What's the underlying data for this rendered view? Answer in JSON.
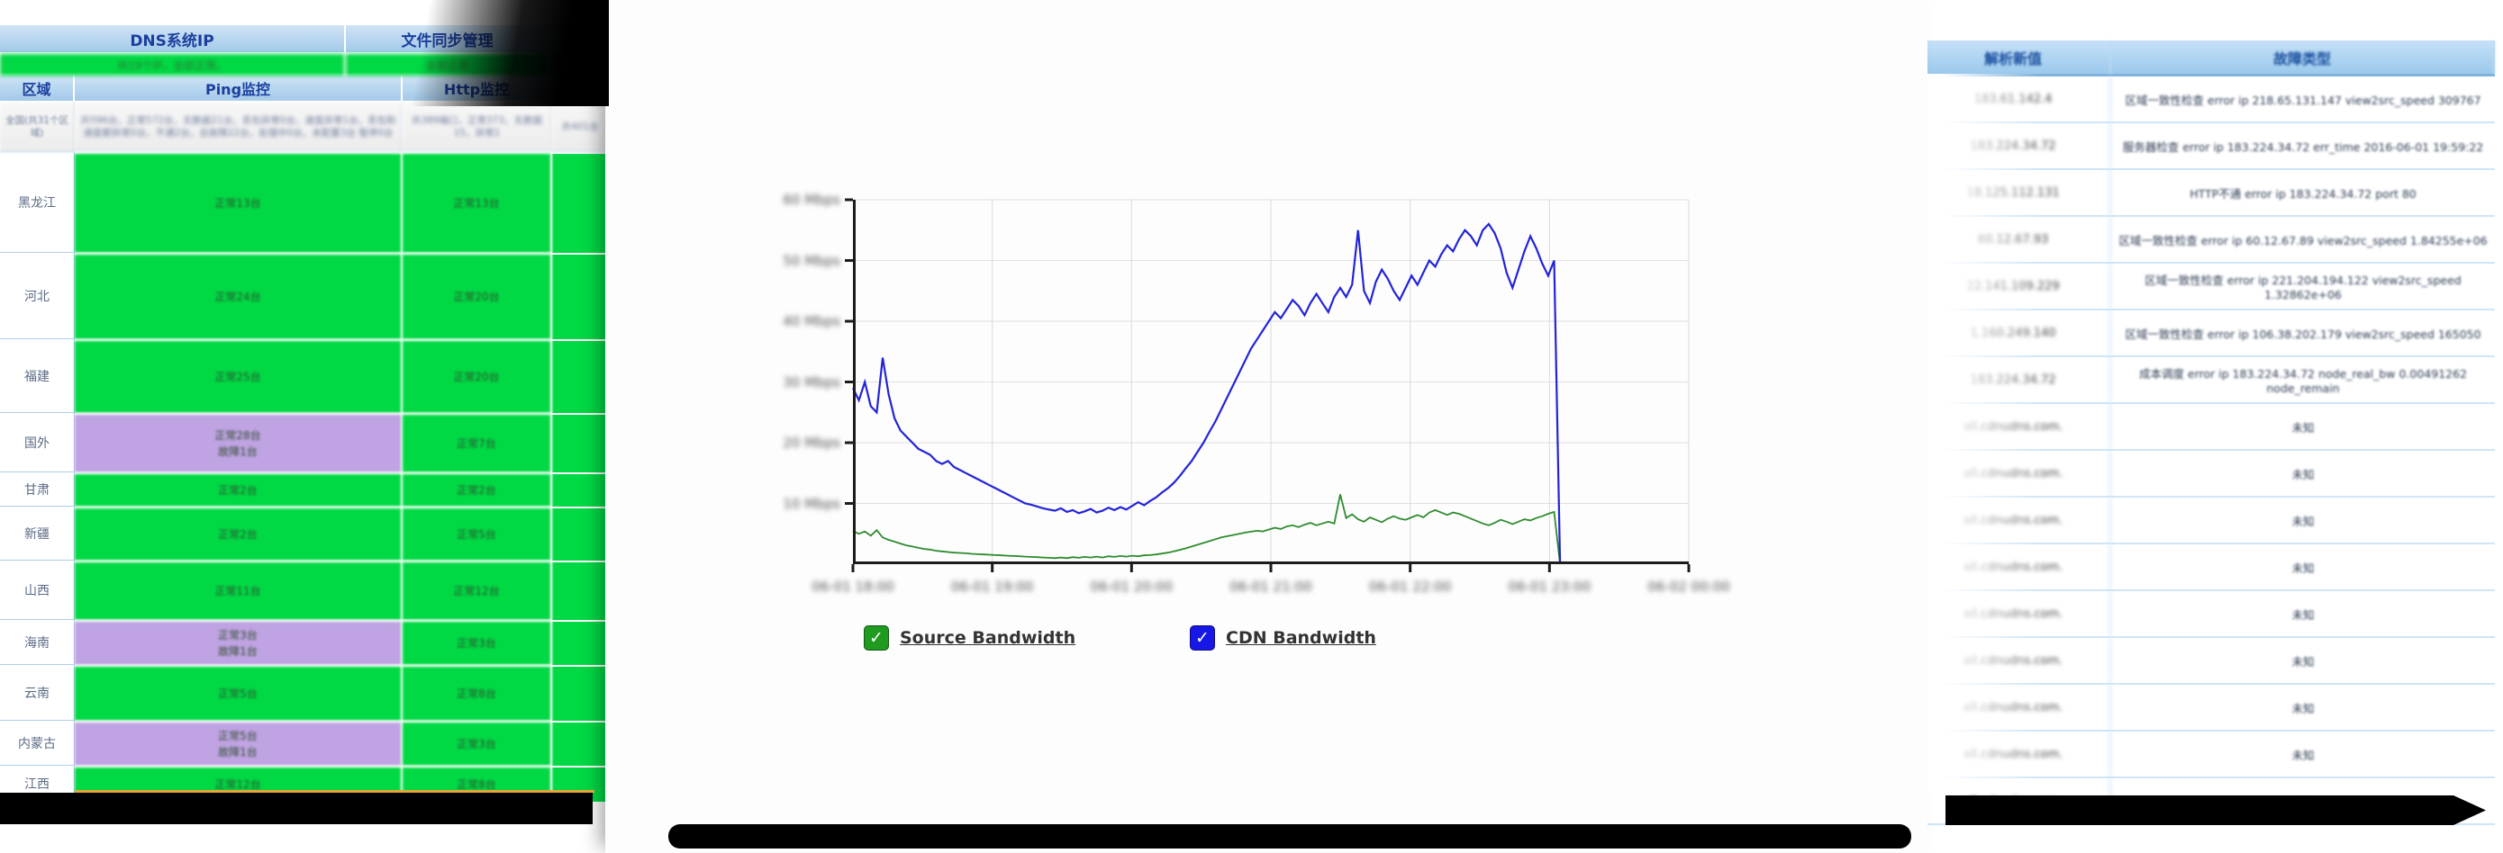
{
  "left_panel": {
    "top_header": {
      "dns_title": "DNS系统IP",
      "file_sync_title": "文件同步管理"
    },
    "summary_row": {
      "dns_summary": "共19个IP，全部正常。",
      "file_sync_summary": "全部正常"
    },
    "columns": {
      "region": "区域",
      "ping": "Ping监控",
      "http": "Http监控"
    },
    "national_row": {
      "region": "全国(共31个区域)",
      "ping_summary": "共596台，正常572台，无数据21台，丢包异常0台，速度异常1台，丢包和速度都异常0台，不通2台，总故障22台，处理中0台，未配置3台 暂停0台",
      "http_summary": "共389端口，正常373，无数据15，异常1",
      "extra_summary": "共401台"
    },
    "rows": [
      {
        "region": "黑龙江",
        "ping": "正常13台",
        "ping_fault": "",
        "http": "正常13台",
        "ping_status": "ok"
      },
      {
        "region": "河北",
        "ping": "正常24台",
        "ping_fault": "",
        "http": "正常20台",
        "ping_status": "ok"
      },
      {
        "region": "福建",
        "ping": "正常25台",
        "ping_fault": "",
        "http": "正常20台",
        "ping_status": "ok"
      },
      {
        "region": "国外",
        "ping": "正常28台",
        "ping_fault": "故障1台",
        "http": "正常7台",
        "ping_status": "fault"
      },
      {
        "region": "甘肃",
        "ping": "正常2台",
        "ping_fault": "",
        "http": "正常2台",
        "ping_status": "ok"
      },
      {
        "region": "新疆",
        "ping": "正常2台",
        "ping_fault": "",
        "http": "正常5台",
        "ping_status": "ok"
      },
      {
        "region": "山西",
        "ping": "正常11台",
        "ping_fault": "",
        "http": "正常12台",
        "ping_status": "ok"
      },
      {
        "region": "海南",
        "ping": "正常3台",
        "ping_fault": "故障1台",
        "http": "正常3台",
        "ping_status": "fault"
      },
      {
        "region": "云南",
        "ping": "正常5台",
        "ping_fault": "",
        "http": "正常8台",
        "ping_status": "ok"
      },
      {
        "region": "内蒙古",
        "ping": "正常5台",
        "ping_fault": "故障1台",
        "http": "正常3台",
        "ping_status": "fault"
      },
      {
        "region": "江西",
        "ping": "正常12台",
        "ping_fault": "",
        "http": "正常8台",
        "ping_status": "ok"
      }
    ],
    "colors": {
      "ok": "#00d944",
      "fault": "#bfa3e2",
      "header_bg": "#a3c9e9"
    }
  },
  "chart_data": {
    "type": "line",
    "title": "",
    "xlabel": "",
    "ylabel": "",
    "x_ticks": [
      "06-01 18:00",
      "06-01 19:00",
      "06-01 20:00",
      "06-01 21:00",
      "06-01 22:00",
      "06-01 23:00",
      "06-02 00:00"
    ],
    "y_ticks": [
      "60 Mbps",
      "50 Mbps",
      "40 Mbps",
      "30 Mbps",
      "20 Mbps",
      "10 Mbps"
    ],
    "ylim": [
      0,
      60
    ],
    "grid_step": 10,
    "x_end_fraction": 0.846,
    "legend_position": "bottom",
    "series": [
      {
        "name": "Source Bandwidth",
        "color": "#2e8b2e",
        "width": 1.8,
        "values": [
          5.5,
          5,
          5.4,
          4.7,
          5.6,
          4.4,
          4,
          3.7,
          3.4,
          3.1,
          2.9,
          2.7,
          2.5,
          2.4,
          2.2,
          2.1,
          2,
          1.9,
          1.85,
          1.8,
          1.7,
          1.65,
          1.6,
          1.55,
          1.5,
          1.45,
          1.4,
          1.35,
          1.3,
          1.25,
          1.2,
          1.15,
          1.1,
          1.05,
          1,
          1.1,
          1,
          1.15,
          1.05,
          1.2,
          1.1,
          1.25,
          1.1,
          1.3,
          1.2,
          1.35,
          1.25,
          1.4,
          1.3,
          1.45,
          1.5,
          1.6,
          1.75,
          1.9,
          2.1,
          2.35,
          2.6,
          2.9,
          3.2,
          3.5,
          3.8,
          4.1,
          4.4,
          4.6,
          4.8,
          5,
          5.2,
          5.35,
          5.5,
          5.4,
          5.7,
          6,
          5.8,
          6.2,
          6.4,
          6.1,
          6.5,
          6.8,
          6.4,
          6.7,
          7,
          6.7,
          11.5,
          7.6,
          8.2,
          7.4,
          7,
          7.7,
          7.3,
          6.9,
          7.5,
          7.9,
          7.5,
          7.3,
          7.7,
          8.1,
          7.7,
          8.5,
          8.9,
          8.5,
          8.1,
          8.5,
          8.3,
          7.9,
          7.5,
          7.1,
          6.7,
          6.4,
          6.8,
          7.3,
          7,
          6.6,
          7,
          7.4,
          7.2,
          7.6,
          7.9,
          8.3,
          8.6,
          0
        ]
      },
      {
        "name": "CDN Bandwidth",
        "color": "#2323d8",
        "width": 2.2,
        "values": [
          29,
          27,
          30,
          26,
          25,
          34,
          28,
          24,
          22,
          21,
          20,
          19,
          18.5,
          18,
          17,
          16.5,
          17,
          16,
          15.5,
          15,
          14.5,
          14,
          13.5,
          13,
          12.5,
          12,
          11.5,
          11,
          10.5,
          10,
          9.8,
          9.5,
          9.2,
          9,
          8.8,
          9.2,
          8.6,
          8.9,
          8.4,
          8.7,
          9.1,
          8.5,
          8.8,
          9.3,
          8.9,
          9.4,
          9,
          9.6,
          10.2,
          9.7,
          10.4,
          11,
          11.8,
          12.5,
          13.4,
          14.5,
          15.8,
          17,
          18.5,
          20,
          21.8,
          23.5,
          25.5,
          27.5,
          29.5,
          31.5,
          33.5,
          35.5,
          37,
          38.5,
          40,
          41.5,
          40.5,
          42,
          43.5,
          42.5,
          41,
          43,
          44.5,
          43,
          41.5,
          44,
          45.5,
          44,
          46,
          55,
          45,
          43,
          46.5,
          48.5,
          47,
          45,
          43.5,
          45.5,
          47.5,
          46,
          48,
          50,
          49,
          51,
          52.5,
          51.5,
          53.5,
          55,
          54,
          52.5,
          55,
          56,
          54.5,
          52,
          48,
          45.5,
          48.5,
          51.5,
          54,
          52,
          49.5,
          47.5,
          50,
          0
        ]
      }
    ]
  },
  "legend": [
    {
      "label": "Source Bandwidth",
      "color": "#1f9b1f",
      "check": "✓"
    },
    {
      "label": "CDN Bandwidth",
      "color": "#1717e6",
      "check": "✓"
    }
  ],
  "right_panel": {
    "header": {
      "value_col": "解析新值",
      "fault_col": "故障类型"
    },
    "rows": [
      {
        "value": "183.61.142.4",
        "fault": "区域一致性检查 error ip 218.65.131.147 view2src_speed 309767"
      },
      {
        "value": "183.224.34.72",
        "fault": "服务器检查 error ip 183.224.34.72 err_time 2016-06-01 19:59:22"
      },
      {
        "value": "18.125.112.131",
        "fault": "HTTP不通 error ip 183.224.34.72 port 80"
      },
      {
        "value": "60.12.67.93",
        "fault": "区域一致性检查 error ip 60.12.67.89 view2src_speed 1.84255e+06"
      },
      {
        "value": "22.141.109.229",
        "fault": "区域一致性检查 error ip 221.204.194.122 view2src_speed 1.32862e+06"
      },
      {
        "value": "1.160.249.140",
        "fault": "区域一致性检查 error ip 106.38.202.179 view2src_speed 165050"
      },
      {
        "value": "183.224.34.72",
        "fault": "成本调度 error ip 183.224.34.72 node_real_bw 0.00491262 node_remain"
      },
      {
        "value": "all.cdnudns.com.",
        "fault": "未知"
      },
      {
        "value": "all.cdnudns.com.",
        "fault": "未知"
      },
      {
        "value": "all.cdnudns.com.",
        "fault": "未知"
      },
      {
        "value": "all.cdnudns.com.",
        "fault": "未知"
      },
      {
        "value": "all.cdnudns.com.",
        "fault": "未知"
      },
      {
        "value": "all.cdnudns.com.",
        "fault": "未知"
      },
      {
        "value": "all.cdnudns.com.",
        "fault": "未知"
      },
      {
        "value": "all.cdnudns.com.",
        "fault": "未知"
      },
      {
        "value": "all.cdnudns.com.",
        "fault": "未知"
      }
    ]
  }
}
